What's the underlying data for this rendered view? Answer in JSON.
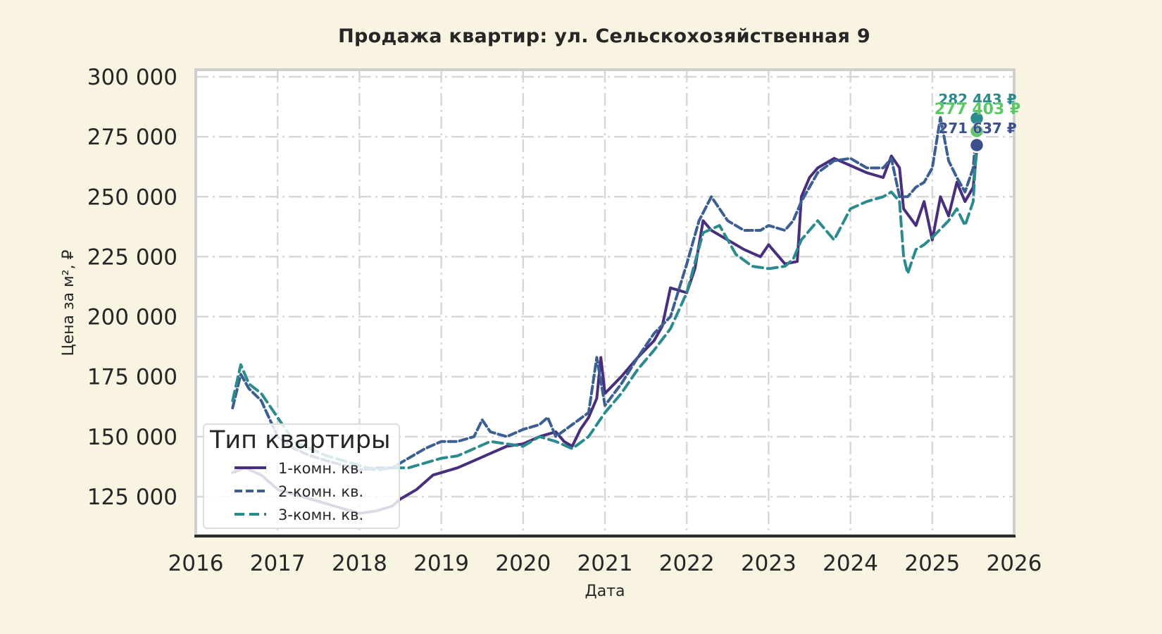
{
  "chart_data": {
    "type": "line",
    "title": "Продажа квартир: ул. Сельскохозяйственная 9",
    "xlabel": "Дата",
    "ylabel": "Цена за м², ₽",
    "xlim": [
      2016,
      2026
    ],
    "ylim": [
      108800,
      302500
    ],
    "x_ticks": [
      "2016",
      "2017",
      "2018",
      "2019",
      "2020",
      "2021",
      "2022",
      "2023",
      "2024",
      "2025",
      "2026"
    ],
    "y_ticks": [
      "125 000",
      "150 000",
      "175 000",
      "200 000",
      "225 000",
      "250 000",
      "275 000",
      "300 000"
    ],
    "y_tick_values": [
      125000,
      150000,
      175000,
      200000,
      225000,
      250000,
      275000,
      300000
    ],
    "grid": true,
    "legend": {
      "title": "Тип квартиры",
      "position": "lower left",
      "entries": [
        "1-комн. кв.",
        "2-комн. кв.",
        "3-комн. кв."
      ]
    },
    "series": [
      {
        "name": "1-комн. кв.",
        "color": "#472f7d",
        "style": "solid",
        "x": [
          2016.45,
          2016.6,
          2016.8,
          2017.0,
          2017.2,
          2017.4,
          2017.6,
          2017.8,
          2018.0,
          2018.2,
          2018.4,
          2018.5,
          2018.6,
          2018.7,
          2018.8,
          2018.9,
          2019.0,
          2019.2,
          2019.4,
          2019.6,
          2019.8,
          2020.0,
          2020.2,
          2020.4,
          2020.5,
          2020.6,
          2020.7,
          2020.8,
          2020.9,
          2020.95,
          2021.0,
          2021.2,
          2021.4,
          2021.6,
          2021.7,
          2021.8,
          2022.0,
          2022.1,
          2022.2,
          2022.3,
          2022.4,
          2022.5,
          2022.7,
          2022.9,
          2023.0,
          2023.2,
          2023.35,
          2023.4,
          2023.5,
          2023.6,
          2023.8,
          2024.0,
          2024.2,
          2024.4,
          2024.5,
          2024.6,
          2024.65,
          2024.8,
          2024.9,
          2025.0,
          2025.1,
          2025.2,
          2025.3,
          2025.4,
          2025.5,
          2025.55
        ],
        "values": [
          135000,
          137000,
          134000,
          128000,
          126000,
          124000,
          122000,
          120000,
          118000,
          119000,
          121000,
          124000,
          126000,
          128000,
          131000,
          134000,
          135000,
          137000,
          140000,
          143000,
          146000,
          147000,
          150000,
          152000,
          148000,
          146000,
          153000,
          158000,
          166000,
          183000,
          168000,
          175000,
          183000,
          190000,
          196000,
          212000,
          210000,
          220000,
          240000,
          236000,
          234000,
          232000,
          228000,
          225000,
          230000,
          222000,
          223000,
          250000,
          258000,
          262000,
          266000,
          263000,
          260000,
          258000,
          267000,
          262000,
          245000,
          238000,
          248000,
          232000,
          250000,
          242000,
          256000,
          248000,
          254000,
          271637
        ]
      },
      {
        "name": "2-комн. кв.",
        "color": "#3b5f91",
        "style": "dashed",
        "x": [
          2016.45,
          2016.55,
          2016.65,
          2016.8,
          2017.0,
          2017.2,
          2017.4,
          2017.6,
          2017.8,
          2018.0,
          2018.2,
          2018.4,
          2018.6,
          2018.8,
          2019.0,
          2019.2,
          2019.4,
          2019.5,
          2019.6,
          2019.8,
          2020.0,
          2020.2,
          2020.3,
          2020.4,
          2020.6,
          2020.8,
          2020.9,
          2021.0,
          2021.2,
          2021.4,
          2021.6,
          2021.8,
          2022.0,
          2022.15,
          2022.3,
          2022.5,
          2022.7,
          2022.9,
          2023.0,
          2023.2,
          2023.3,
          2023.4,
          2023.6,
          2023.8,
          2024.0,
          2024.2,
          2024.4,
          2024.5,
          2024.6,
          2024.7,
          2024.8,
          2024.9,
          2025.0,
          2025.1,
          2025.2,
          2025.3,
          2025.4,
          2025.5,
          2025.55
        ],
        "values": [
          162000,
          176000,
          170000,
          165000,
          150000,
          145000,
          142000,
          140000,
          138000,
          136000,
          137000,
          137000,
          141000,
          145000,
          148000,
          148000,
          150000,
          157000,
          152000,
          150000,
          153000,
          155000,
          158000,
          150000,
          155000,
          160000,
          183000,
          163000,
          172000,
          183000,
          193000,
          200000,
          222000,
          240000,
          250000,
          240000,
          236000,
          236000,
          238000,
          236000,
          240000,
          248000,
          260000,
          265000,
          266000,
          262000,
          262000,
          266000,
          250000,
          250000,
          254000,
          256000,
          262000,
          283000,
          265000,
          258000,
          252000,
          262000,
          282443
        ]
      },
      {
        "name": "3-комн. кв.",
        "color": "#2a8a8c",
        "style": "dashed",
        "x": [
          2016.45,
          2016.55,
          2016.65,
          2016.8,
          2017.0,
          2017.2,
          2017.4,
          2017.6,
          2017.8,
          2018.0,
          2018.2,
          2018.4,
          2018.6,
          2018.8,
          2019.0,
          2019.2,
          2019.4,
          2019.6,
          2019.8,
          2020.0,
          2020.2,
          2020.4,
          2020.6,
          2020.8,
          2021.0,
          2021.2,
          2021.4,
          2021.6,
          2021.8,
          2022.0,
          2022.2,
          2022.4,
          2022.6,
          2022.8,
          2023.0,
          2023.2,
          2023.3,
          2023.4,
          2023.6,
          2023.8,
          2024.0,
          2024.2,
          2024.4,
          2024.5,
          2024.6,
          2024.65,
          2024.7,
          2024.8,
          2024.9,
          2025.0,
          2025.2,
          2025.3,
          2025.4,
          2025.5,
          2025.55
        ],
        "values": [
          165000,
          180000,
          172000,
          168000,
          158000,
          148000,
          145000,
          142000,
          140000,
          138000,
          136000,
          137000,
          137000,
          139000,
          141000,
          142000,
          145000,
          148000,
          147000,
          146000,
          150000,
          148000,
          145000,
          150000,
          160000,
          168000,
          178000,
          186000,
          195000,
          210000,
          235000,
          238000,
          226000,
          221000,
          220000,
          221000,
          224000,
          232000,
          240000,
          232000,
          245000,
          248000,
          250000,
          252000,
          248000,
          225000,
          218000,
          228000,
          230000,
          233000,
          240000,
          245000,
          238000,
          248000,
          277403
        ]
      }
    ],
    "annotations": [
      {
        "text": "282 443 ₽",
        "x": 2025.55,
        "y": 282443,
        "color": "#2a8a8c"
      },
      {
        "text": "277 403 ₽",
        "x": 2025.55,
        "y": 277403,
        "color": "#5ac864"
      },
      {
        "text": "271 637 ₽",
        "x": 2025.55,
        "y": 271637,
        "color": "#3b4f8a"
      }
    ],
    "end_markers": [
      {
        "series": "2-комн. кв.",
        "x": 2025.55,
        "y": 282443,
        "color": "#2a8a8c"
      },
      {
        "series": "3-комн. кв.",
        "x": 2025.55,
        "y": 277403,
        "color": "#5ac864"
      },
      {
        "series": "1-комн. кв.",
        "x": 2025.55,
        "y": 271637,
        "color": "#3b4f8a"
      }
    ]
  }
}
